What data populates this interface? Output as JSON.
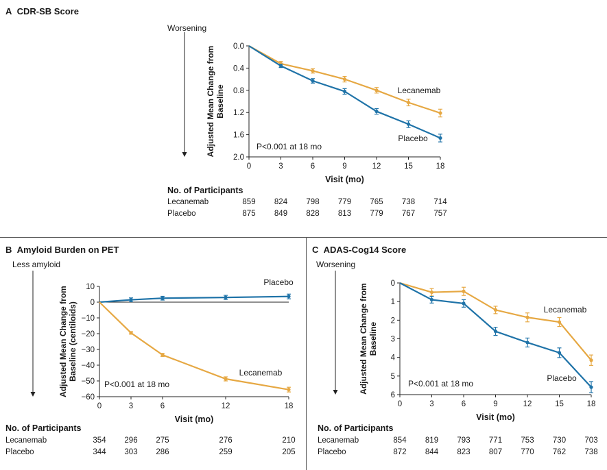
{
  "colors": {
    "lecanemab": "#e6a843",
    "placebo": "#1f73a8"
  },
  "ntable_header": "No. of Participants",
  "chart_data": [
    {
      "id": "A",
      "type": "line",
      "panel_letter": "A",
      "title": "CDR-SB Score",
      "direction_label": "Worsening",
      "xlabel": "Visit (mo)",
      "ylabel": [
        "Adjusted Mean Change from",
        "Baseline"
      ],
      "x": [
        0,
        3,
        6,
        9,
        12,
        15,
        18
      ],
      "xticks": [
        0,
        3,
        6,
        9,
        12,
        15,
        18
      ],
      "xlim": [
        0,
        18
      ],
      "ylim": [
        0.0,
        2.0
      ],
      "y_inverted": true,
      "yticks": [
        0.0,
        0.4,
        0.8,
        1.2,
        1.6,
        2.0
      ],
      "ytick_labels": [
        "0.0",
        "0.4",
        "0.8",
        "1.2",
        "1.6",
        "2.0"
      ],
      "annotation": "P<0.001 at 18 mo",
      "series": [
        {
          "name": "Lecanemab",
          "key": "lecanemab",
          "values": [
            0.0,
            0.32,
            0.45,
            0.6,
            0.8,
            1.02,
            1.21
          ],
          "err": [
            0,
            0.04,
            0.04,
            0.05,
            0.05,
            0.06,
            0.07
          ]
        },
        {
          "name": "Placebo",
          "key": "placebo",
          "values": [
            0.0,
            0.36,
            0.63,
            0.82,
            1.18,
            1.41,
            1.66
          ],
          "err": [
            0,
            0.03,
            0.04,
            0.05,
            0.05,
            0.06,
            0.07
          ]
        }
      ],
      "participants": {
        "x": [
          0,
          3,
          6,
          9,
          12,
          15,
          18
        ],
        "rows": [
          {
            "label": "Lecanemab",
            "values": [
              "859",
              "824",
              "798",
              "779",
              "765",
              "738",
              "714"
            ]
          },
          {
            "label": "Placebo",
            "values": [
              "875",
              "849",
              "828",
              "813",
              "779",
              "767",
              "757"
            ]
          }
        ]
      }
    },
    {
      "id": "B",
      "type": "line",
      "panel_letter": "B",
      "title": "Amyloid Burden on PET",
      "direction_label": "Less amyloid",
      "xlabel": "Visit (mo)",
      "ylabel": [
        "Adjusted Mean Change from",
        "Baseline (centiloids)"
      ],
      "x": [
        0,
        3,
        6,
        12,
        18
      ],
      "xticks": [
        0,
        3,
        6,
        12,
        18
      ],
      "xlim": [
        0,
        18
      ],
      "ylim": [
        -60,
        10
      ],
      "y_inverted": false,
      "yticks": [
        10,
        0,
        -10,
        -20,
        -30,
        -40,
        -50,
        -60
      ],
      "ytick_labels": [
        "10",
        "0",
        "−10",
        "−20",
        "−30",
        "−40",
        "−50",
        "−60"
      ],
      "annotation": "P<0.001 at 18 mo",
      "series": [
        {
          "name": "Placebo",
          "key": "placebo",
          "values": [
            0.0,
            1.5,
            2.5,
            3.0,
            3.6
          ],
          "err": [
            0,
            1.2,
            1.2,
            1.3,
            1.5
          ]
        },
        {
          "name": "Lecanemab",
          "key": "lecanemab",
          "values": [
            0.0,
            -19.5,
            -33.5,
            -48.7,
            -55.5
          ],
          "err": [
            0,
            0.8,
            1.0,
            1.3,
            1.5
          ]
        }
      ],
      "participants": {
        "x": [
          0,
          3,
          6,
          12,
          18
        ],
        "rows": [
          {
            "label": "Lecanemab",
            "values": [
              "354",
              "296",
              "275",
              "276",
              "210"
            ]
          },
          {
            "label": "Placebo",
            "values": [
              "344",
              "303",
              "286",
              "259",
              "205"
            ]
          }
        ]
      }
    },
    {
      "id": "C",
      "type": "line",
      "panel_letter": "C",
      "title": "ADAS-Cog14 Score",
      "direction_label": "Worsening",
      "xlabel": "Visit (mo)",
      "ylabel": [
        "Adjusted Mean Change from",
        "Baseline"
      ],
      "x": [
        0,
        3,
        6,
        9,
        12,
        15,
        18
      ],
      "xticks": [
        0,
        3,
        6,
        9,
        12,
        15,
        18
      ],
      "xlim": [
        0,
        18
      ],
      "ylim": [
        0,
        6
      ],
      "y_inverted": true,
      "yticks": [
        0,
        1,
        2,
        3,
        4,
        5,
        6
      ],
      "ytick_labels": [
        "0",
        "1",
        "2",
        "3",
        "4",
        "5",
        "6"
      ],
      "annotation": "P<0.001 at 18 mo",
      "series": [
        {
          "name": "Lecanemab",
          "key": "lecanemab",
          "values": [
            0.0,
            0.5,
            0.45,
            1.45,
            1.85,
            2.1,
            4.15
          ],
          "err": [
            0,
            0.2,
            0.22,
            0.2,
            0.24,
            0.24,
            0.28
          ]
        },
        {
          "name": "Placebo",
          "key": "placebo",
          "values": [
            0.0,
            0.9,
            1.1,
            2.6,
            3.2,
            3.75,
            5.6
          ],
          "err": [
            0,
            0.18,
            0.2,
            0.22,
            0.24,
            0.26,
            0.3
          ]
        }
      ],
      "participants": {
        "x": [
          0,
          3,
          6,
          9,
          12,
          15,
          18
        ],
        "rows": [
          {
            "label": "Lecanemab",
            "values": [
              "854",
              "819",
              "793",
              "771",
              "753",
              "730",
              "703"
            ]
          },
          {
            "label": "Placebo",
            "values": [
              "872",
              "844",
              "823",
              "807",
              "770",
              "762",
              "738"
            ]
          }
        ]
      }
    }
  ]
}
